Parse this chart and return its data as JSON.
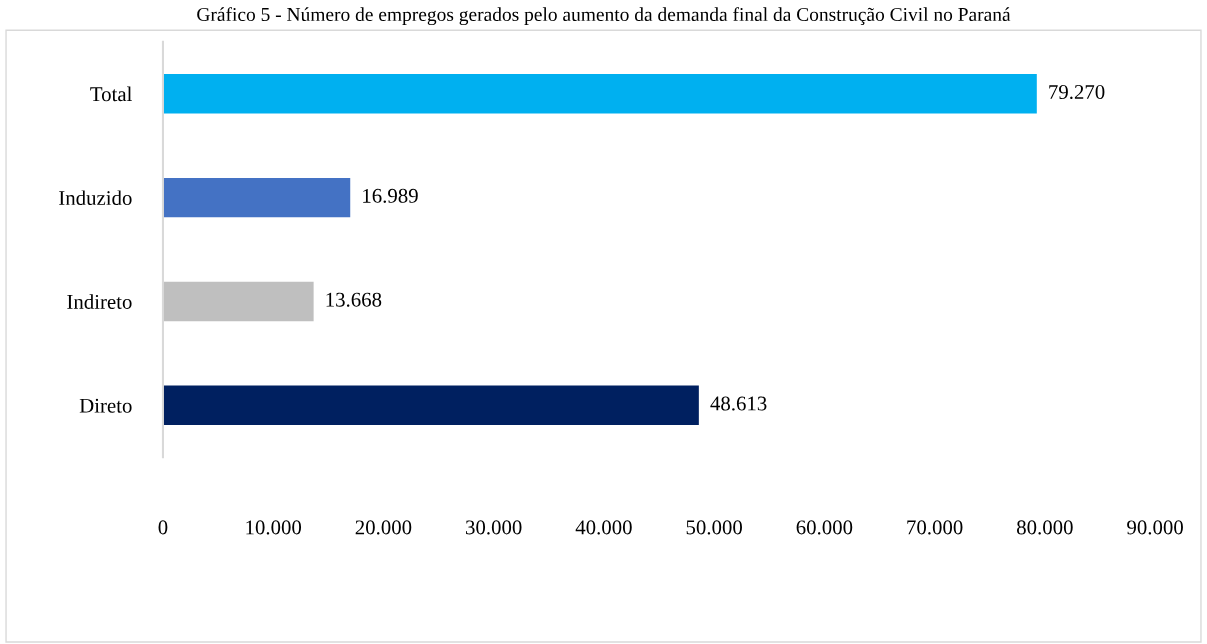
{
  "chart_data": {
    "type": "bar",
    "orientation": "horizontal",
    "title": "Gráfico 5 - Número de empregos gerados pelo aumento da demanda final da Construção Civil no Paraná",
    "categories": [
      "Total",
      "Induzido",
      "Indireto",
      "Direto"
    ],
    "values": [
      79270,
      16989,
      13668,
      48613
    ],
    "colors": [
      "#00b0f0",
      "#4472c4",
      "#bfbfbf",
      "#002060"
    ],
    "value_labels": [
      "79.270",
      "16.989",
      "13.668",
      "48.613"
    ],
    "xlim": [
      0,
      90000
    ],
    "xticks": [
      {
        "value": 0,
        "label": "0"
      },
      {
        "value": 10000,
        "label": "10.000"
      },
      {
        "value": 20000,
        "label": "20.000"
      },
      {
        "value": 30000,
        "label": "30.000"
      },
      {
        "value": 40000,
        "label": "40.000"
      },
      {
        "value": 50000,
        "label": "50.000"
      },
      {
        "value": 60000,
        "label": "60.000"
      },
      {
        "value": 70000,
        "label": "70.000"
      },
      {
        "value": 80000,
        "label": "80.000"
      },
      {
        "value": 90000,
        "label": "90.000"
      }
    ],
    "grid": false,
    "legend": false
  }
}
